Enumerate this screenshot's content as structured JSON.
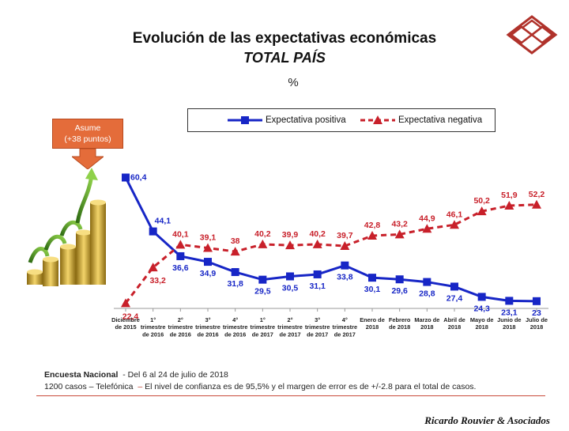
{
  "header": {
    "title": "Evolución de las expectativas económicas",
    "subtitle": "TOTAL PAÍS",
    "unit": "%"
  },
  "callout": {
    "line1": "Asume",
    "line2": "(+38 puntos)"
  },
  "colors": {
    "positive": "#1726c6",
    "negative": "#c8202a",
    "callout": "#e46c3a",
    "rule": "#c94a3a"
  },
  "chart_data": {
    "type": "line",
    "categories": [
      [
        "Diciembre",
        "de 2015"
      ],
      [
        "1°",
        "trimestre",
        "de 2016"
      ],
      [
        "2°",
        "trimestre",
        "de 2016"
      ],
      [
        "3°",
        "trimestre",
        "de 2016"
      ],
      [
        "4°",
        "trimestre",
        "de 2016"
      ],
      [
        "1°",
        "trimestre",
        "de 2017"
      ],
      [
        "2°",
        "trimestre",
        "de 2017"
      ],
      [
        "3°",
        "trimestre",
        "de 2017"
      ],
      [
        "4°",
        "trimestre",
        "de 2017"
      ],
      [
        "Enero de",
        "2018"
      ],
      [
        "Febrero",
        "de 2018"
      ],
      [
        "Marzo de",
        "2018"
      ],
      [
        "Abril de",
        "2018"
      ],
      [
        "Mayo de",
        "2018"
      ],
      [
        "Junio de",
        "2018"
      ],
      [
        "Julio de",
        "2018"
      ]
    ],
    "series": [
      {
        "name": "Expectativa positiva",
        "marker": "square",
        "values": [
          60.4,
          44.1,
          36.6,
          34.9,
          31.8,
          29.5,
          30.5,
          31.1,
          33.8,
          30.1,
          29.6,
          28.8,
          27.4,
          24.3,
          23.1,
          23
        ],
        "labels": [
          "60,4",
          "44,1",
          "36,6",
          "34,9",
          "31,8",
          "29,5",
          "30,5",
          "31,1",
          "33,8",
          "30,1",
          "29,6",
          "28,8",
          "27,4",
          "24,3",
          "23,1",
          "23"
        ]
      },
      {
        "name": "Expectativa negativa",
        "marker": "triangle",
        "dashed": true,
        "values": [
          22.4,
          33.2,
          40.1,
          39.1,
          38,
          40.2,
          39.9,
          40.2,
          39.7,
          42.8,
          43.2,
          44.9,
          46.1,
          50.2,
          51.9,
          52.2
        ],
        "labels": [
          "22,4",
          "33,2",
          "40,1",
          "39,1",
          "38",
          "40,2",
          "39,9",
          "40,2",
          "39,7",
          "42,8",
          "43,2",
          "44,9",
          "46,1",
          "50,2",
          "51,9",
          "52,2"
        ]
      }
    ],
    "legend": "top"
  },
  "footer": {
    "survey": "Encuesta Nacional",
    "dates": "- Del 6 al 24 de julio de 2018",
    "cases": "1200 casos – Telefónica",
    "sep": "–",
    "note": "El nivel de confianza es de 95,5% y el margen de error es de +/-2.8 para el total de casos."
  },
  "brand": "Ricardo Rouvier & Asociados"
}
